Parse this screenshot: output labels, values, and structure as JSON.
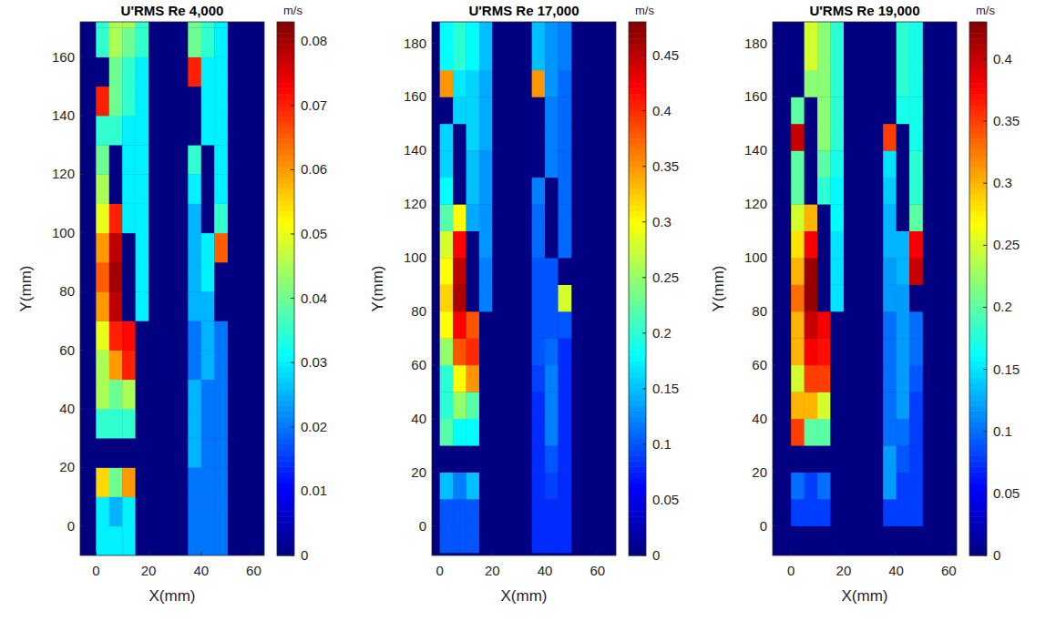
{
  "chart_data": [
    {
      "type": "heatmap",
      "title": "U'RMS Re 4,000",
      "x_label": "X(mm)",
      "y_label": "Y(mm)",
      "colorbar_label": "m/s",
      "xlim": [
        -6,
        64
      ],
      "ylim": [
        -10,
        172
      ],
      "xticks": [
        0,
        20,
        40,
        60
      ],
      "yticks": [
        0,
        20,
        40,
        60,
        80,
        100,
        120,
        140,
        160
      ],
      "clim": [
        0,
        0.083
      ],
      "cticks": [
        0,
        0.01,
        0.02,
        0.03,
        0.04,
        0.05,
        0.06,
        0.07,
        0.08
      ],
      "x_edges": [
        0,
        5,
        10,
        15,
        20,
        25,
        30,
        35,
        40,
        45,
        50
      ],
      "y_edges": [
        -10,
        0,
        10,
        20,
        30,
        40,
        50,
        60,
        70,
        80,
        90,
        100,
        110,
        120,
        130,
        140,
        150,
        160,
        170,
        190
      ],
      "cells": [
        [
          0.03,
          0.03,
          0.03,
          0,
          0,
          0,
          0,
          0.02,
          0.02,
          0.02
        ],
        [
          0.03,
          0.025,
          0.03,
          0,
          0,
          0,
          0,
          0.02,
          0.02,
          0.02
        ],
        [
          0.055,
          0.04,
          0.06,
          0,
          0,
          0,
          0,
          0.02,
          0.02,
          0.02
        ],
        [
          0,
          0,
          0,
          0,
          0,
          0,
          0,
          0.025,
          0.02,
          0.02
        ],
        [
          0.035,
          0.035,
          0.035,
          0,
          0,
          0,
          0,
          0.025,
          0.02,
          0.02
        ],
        [
          0.045,
          0.04,
          0.045,
          0,
          0,
          0,
          0,
          0.025,
          0.02,
          0.02
        ],
        [
          0.045,
          0.06,
          0.07,
          0,
          0,
          0,
          0,
          0.02,
          0.025,
          0.02
        ],
        [
          0.05,
          0.07,
          0.072,
          0,
          0,
          0,
          0,
          0.02,
          0.025,
          0.02
        ],
        [
          0.06,
          0.078,
          0,
          0.03,
          0,
          0,
          0,
          0.025,
          0.025,
          0
        ],
        [
          0.065,
          0.08,
          0,
          0.03,
          0,
          0,
          0,
          0.025,
          0.03,
          0
        ],
        [
          0.06,
          0.078,
          0,
          0.03,
          0,
          0,
          0,
          0.025,
          0.03,
          0.065
        ],
        [
          0.05,
          0.07,
          0.03,
          0.03,
          0,
          0,
          0,
          0.025,
          0,
          0.035
        ],
        [
          0.045,
          0,
          0.03,
          0.03,
          0,
          0,
          0,
          0.03,
          0,
          0.03
        ],
        [
          0.04,
          0,
          0.03,
          0.03,
          0,
          0,
          0,
          0.035,
          0,
          0.03
        ],
        [
          0.035,
          0.035,
          0.03,
          0.03,
          0,
          0,
          0,
          0,
          0.03,
          0.03
        ],
        [
          0.07,
          0.04,
          0.035,
          0.03,
          0,
          0,
          0,
          0,
          0.03,
          0.03
        ],
        [
          0,
          0.04,
          0.035,
          0.03,
          0,
          0,
          0,
          0.07,
          0.03,
          0.03
        ],
        [
          0.035,
          0.045,
          0.04,
          0.035,
          0,
          0,
          0,
          0.04,
          0.035,
          0.03
        ],
        [
          0.035,
          0.045,
          0.045,
          0.035,
          0,
          0,
          0,
          0.04,
          0.035,
          0.03
        ]
      ]
    },
    {
      "type": "heatmap",
      "title": "U'RMS Re 17,000",
      "x_label": "X(mm)",
      "y_label": "Y(mm)",
      "colorbar_label": "m/s",
      "xlim": [
        -3,
        67
      ],
      "ylim": [
        -11,
        188
      ],
      "xticks": [
        0,
        20,
        40,
        60
      ],
      "yticks": [
        0,
        20,
        40,
        60,
        80,
        100,
        120,
        140,
        160,
        180
      ],
      "clim": [
        0,
        0.48
      ],
      "cticks": [
        0,
        0.05,
        0.1,
        0.15,
        0.2,
        0.25,
        0.3,
        0.35,
        0.4,
        0.45
      ],
      "x_edges": [
        0,
        5,
        10,
        15,
        20,
        25,
        30,
        35,
        40,
        45,
        50
      ],
      "y_edges": [
        -10,
        0,
        10,
        20,
        30,
        40,
        50,
        60,
        70,
        80,
        90,
        100,
        110,
        120,
        130,
        140,
        150,
        160,
        170,
        190
      ],
      "cells": [
        [
          0.1,
          0.1,
          0.1,
          0,
          0,
          0,
          0,
          0.08,
          0.08,
          0.08
        ],
        [
          0.1,
          0.1,
          0.1,
          0,
          0,
          0,
          0,
          0.08,
          0.08,
          0.08
        ],
        [
          0.15,
          0.12,
          0.15,
          0,
          0,
          0,
          0,
          0.08,
          0.09,
          0.08
        ],
        [
          0,
          0,
          0,
          0,
          0,
          0,
          0,
          0.08,
          0.1,
          0.08
        ],
        [
          0.22,
          0.18,
          0.18,
          0,
          0,
          0,
          0,
          0.08,
          0.12,
          0.08
        ],
        [
          0.2,
          0.25,
          0.22,
          0,
          0,
          0,
          0,
          0.08,
          0.12,
          0.08
        ],
        [
          0.2,
          0.3,
          0.35,
          0,
          0,
          0,
          0,
          0.09,
          0.12,
          0.08
        ],
        [
          0.25,
          0.38,
          0.4,
          0,
          0,
          0,
          0,
          0.1,
          0.11,
          0.08
        ],
        [
          0.3,
          0.42,
          0.38,
          0,
          0,
          0,
          0,
          0.1,
          0.1,
          0.1
        ],
        [
          0.32,
          0.46,
          0,
          0.12,
          0,
          0,
          0,
          0.1,
          0.1,
          0.28
        ],
        [
          0.3,
          0.45,
          0,
          0.12,
          0,
          0,
          0,
          0.1,
          0.1,
          0
        ],
        [
          0.28,
          0.42,
          0,
          0.13,
          0,
          0,
          0,
          0.11,
          0,
          0.11
        ],
        [
          0.22,
          0.3,
          0.14,
          0.13,
          0,
          0,
          0,
          0.11,
          0,
          0.11
        ],
        [
          0.18,
          0,
          0.15,
          0.13,
          0,
          0,
          0,
          0.12,
          0,
          0.11
        ],
        [
          0.16,
          0,
          0.15,
          0.13,
          0,
          0,
          0,
          0,
          0.12,
          0.11
        ],
        [
          0.16,
          0,
          0.16,
          0.14,
          0,
          0,
          0,
          0,
          0.12,
          0.11
        ],
        [
          0,
          0.16,
          0.16,
          0.14,
          0,
          0,
          0,
          0,
          0.12,
          0.11
        ],
        [
          0.35,
          0.17,
          0.16,
          0.14,
          0,
          0,
          0,
          0.35,
          0.13,
          0.11
        ],
        [
          0.18,
          0.2,
          0.18,
          0.15,
          0,
          0,
          0,
          0.15,
          0.13,
          0.12
        ]
      ]
    },
    {
      "type": "heatmap",
      "title": "U'RMS Re 19,000",
      "x_label": "X(mm)",
      "y_label": "Y(mm)",
      "colorbar_label": "m/s",
      "xlim": [
        -7,
        63
      ],
      "ylim": [
        -11,
        188
      ],
      "xticks": [
        0,
        20,
        40,
        60
      ],
      "yticks": [
        0,
        20,
        40,
        60,
        80,
        100,
        120,
        140,
        160,
        180
      ],
      "clim": [
        0,
        0.43
      ],
      "cticks": [
        0,
        0.05,
        0.1,
        0.15,
        0.2,
        0.25,
        0.3,
        0.35,
        0.4
      ],
      "x_edges": [
        0,
        5,
        10,
        15,
        20,
        25,
        30,
        35,
        40,
        45,
        50
      ],
      "y_edges": [
        -10,
        0,
        10,
        20,
        30,
        40,
        50,
        60,
        70,
        80,
        90,
        100,
        110,
        120,
        130,
        140,
        150,
        160,
        170,
        190
      ],
      "cells": [
        [
          0,
          0,
          0,
          0,
          0,
          0,
          0,
          0,
          0,
          0
        ],
        [
          0.08,
          0.08,
          0.08,
          0,
          0,
          0,
          0,
          0.08,
          0.08,
          0.08
        ],
        [
          0.1,
          0.08,
          0.1,
          0,
          0,
          0,
          0,
          0.12,
          0.08,
          0.08
        ],
        [
          0,
          0,
          0,
          0,
          0,
          0,
          0,
          0.12,
          0.09,
          0.08
        ],
        [
          0.35,
          0.2,
          0.2,
          0,
          0,
          0,
          0,
          0.1,
          0.1,
          0.08
        ],
        [
          0.3,
          0.3,
          0.25,
          0,
          0,
          0,
          0,
          0.1,
          0.12,
          0.08
        ],
        [
          0.25,
          0.35,
          0.35,
          0,
          0,
          0,
          0,
          0.1,
          0.12,
          0.09
        ],
        [
          0.3,
          0.38,
          0.37,
          0,
          0,
          0,
          0,
          0.1,
          0.12,
          0.1
        ],
        [
          0.3,
          0.4,
          0.38,
          0,
          0,
          0,
          0,
          0.1,
          0.12,
          0.1
        ],
        [
          0.33,
          0.42,
          0,
          0.15,
          0,
          0,
          0,
          0.12,
          0.12,
          0
        ],
        [
          0.3,
          0.42,
          0,
          0.15,
          0,
          0,
          0,
          0.12,
          0.13,
          0.4
        ],
        [
          0.28,
          0.38,
          0,
          0.15,
          0,
          0,
          0,
          0.13,
          0.13,
          0.38
        ],
        [
          0.25,
          0.3,
          0,
          0.16,
          0,
          0,
          0,
          0.13,
          0,
          0.2
        ],
        [
          0.2,
          0,
          0.18,
          0.16,
          0,
          0,
          0,
          0.14,
          0,
          0.18
        ],
        [
          0.2,
          0,
          0.2,
          0.17,
          0,
          0,
          0,
          0.15,
          0,
          0.18
        ],
        [
          0.4,
          0,
          0.22,
          0.18,
          0,
          0,
          0,
          0.35,
          0,
          0.17
        ],
        [
          0.2,
          0,
          0.22,
          0.18,
          0,
          0,
          0,
          0,
          0.17,
          0.17
        ],
        [
          0,
          0.22,
          0.22,
          0.18,
          0,
          0,
          0,
          0,
          0.18,
          0.17
        ],
        [
          0,
          0.25,
          0.22,
          0.18,
          0,
          0,
          0,
          0,
          0.18,
          0.17
        ]
      ]
    }
  ]
}
